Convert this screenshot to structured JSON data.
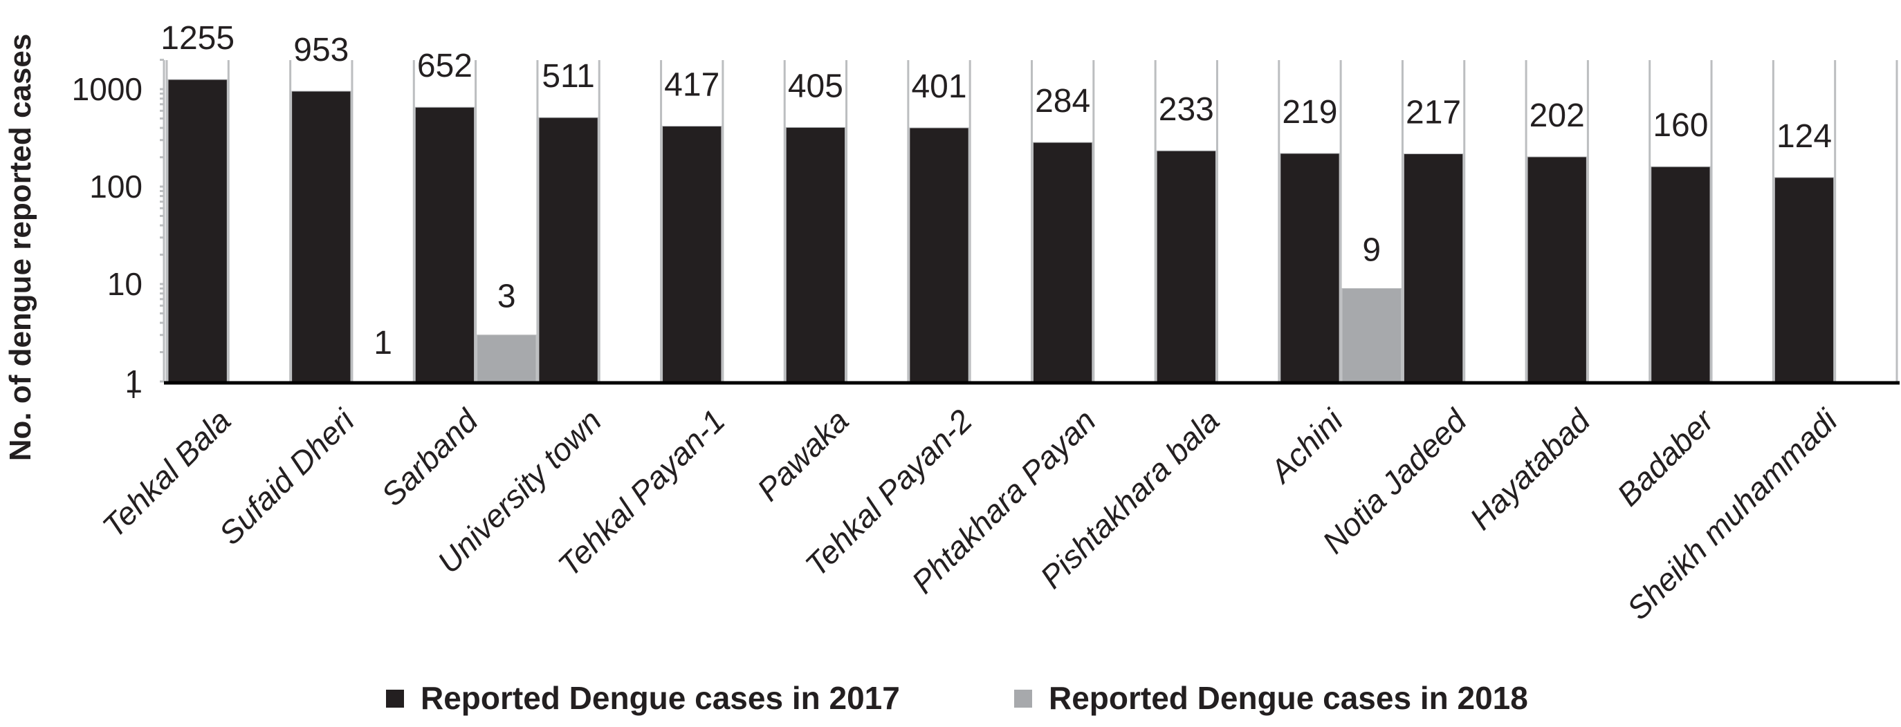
{
  "chart_data": {
    "type": "bar",
    "title": "",
    "xlabel": "",
    "ylabel": "No. of dengue reported cases",
    "yscale": "log",
    "ylim": [
      1,
      2000
    ],
    "yticks": [
      "1",
      "10",
      "100",
      "1000"
    ],
    "ytick_values": [
      1,
      10,
      100,
      1000
    ],
    "grid": false,
    "legend_position": "bottom",
    "categories": [
      "Tehkal Bala",
      "Sufaid Dheri",
      "Sarband",
      "University town",
      "Tehkal Payan-1",
      "Pawaka",
      "Tehkal Payan-2",
      "Phtakhara Payan",
      "Pishtakhara bala",
      "Achini",
      "Notia Jadeed",
      "Hayatabad",
      "Badaber",
      "Sheikh muhammadi"
    ],
    "series": [
      {
        "name": "Reported Dengue cases in 2017",
        "color": "#231f20",
        "values": [
          1255,
          953,
          652,
          511,
          417,
          405,
          401,
          284,
          233,
          219,
          217,
          202,
          160,
          124
        ]
      },
      {
        "name": "Reported Dengue cases in 2018",
        "color": "#a7a9ac",
        "values": [
          null,
          1,
          3,
          null,
          null,
          null,
          null,
          null,
          null,
          9,
          null,
          null,
          null,
          null
        ]
      }
    ]
  }
}
